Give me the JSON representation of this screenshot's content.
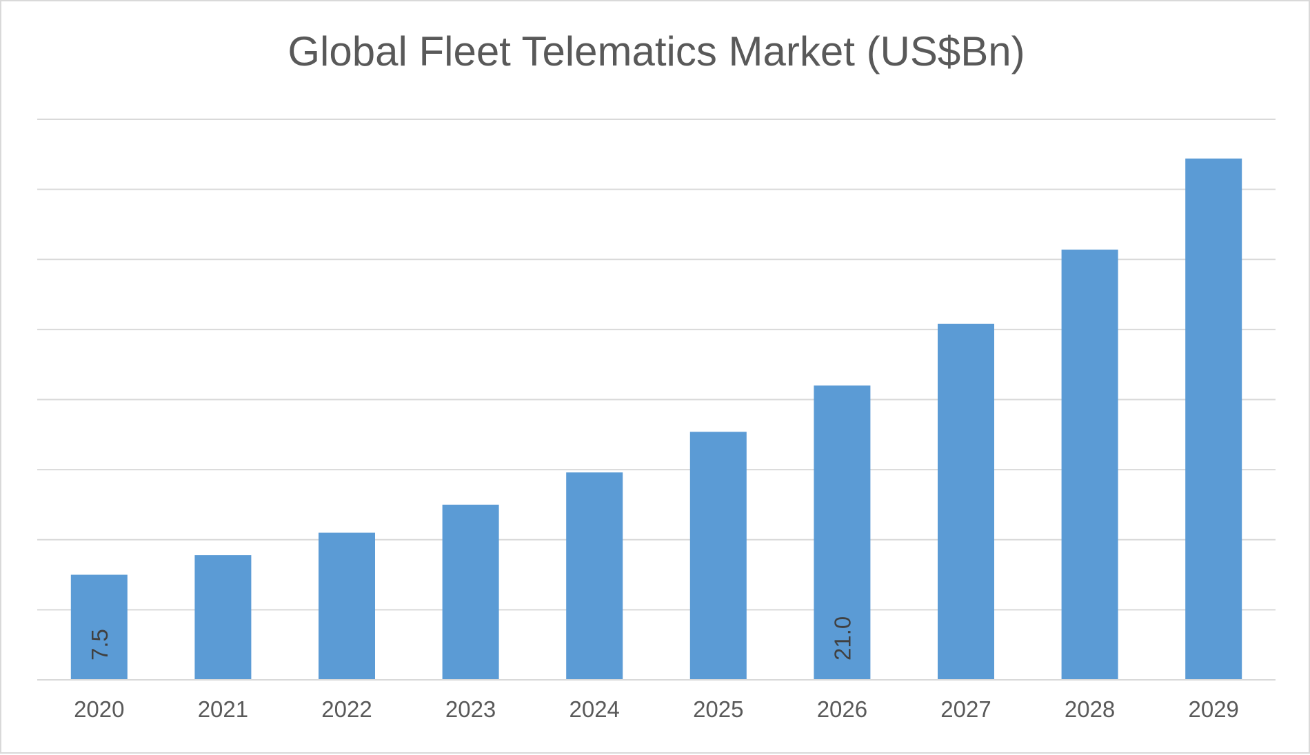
{
  "chart_data": {
    "type": "bar",
    "title": "Global Fleet Telematics Market (US$Bn)",
    "xlabel": "",
    "ylabel": "",
    "categories": [
      "2020",
      "2021",
      "2022",
      "2023",
      "2024",
      "2025",
      "2026",
      "2027",
      "2028",
      "2029"
    ],
    "values": [
      7.5,
      8.9,
      10.5,
      12.5,
      14.8,
      17.7,
      21.0,
      25.4,
      30.7,
      37.2
    ],
    "ylim": [
      0,
      40
    ],
    "grid": true,
    "legend": "none",
    "data_labels": [
      {
        "category": "2020",
        "text": "7.5"
      },
      {
        "category": "2026",
        "text": "21.0"
      }
    ],
    "colors": {
      "bar": "#5b9bd5",
      "grid": "#d9d9d9",
      "text": "#595959"
    }
  }
}
